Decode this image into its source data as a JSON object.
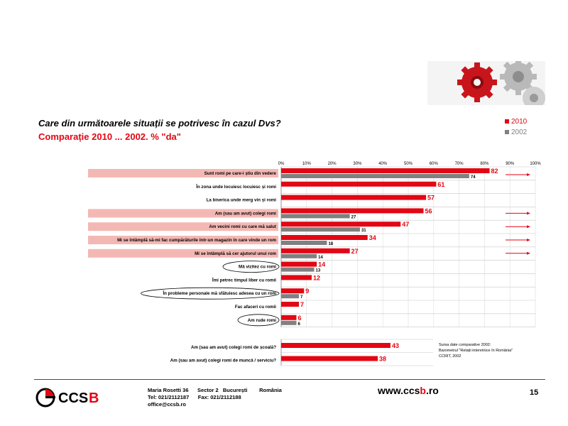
{
  "title": "Care din următoarele situații se potrivesc în cazul Dvs?",
  "subtitle": "Comparație 2010 ... 2002. % \"da\"",
  "legend": [
    {
      "label": "2010",
      "color": "#e30613"
    },
    {
      "label": "2002",
      "color": "#808080"
    }
  ],
  "chart_data": {
    "type": "bar",
    "orientation": "horizontal",
    "title": "Care din următoarele situații se potrivesc în cazul Dvs?",
    "subtitle": "Comparație 2010 ... 2002. % \"da\"",
    "xlim": [
      0,
      100
    ],
    "ticks": [
      "0%",
      "10%",
      "20%",
      "30%",
      "40%",
      "50%",
      "60%",
      "70%",
      "80%",
      "90%",
      "100%"
    ],
    "legend_position": "top-right",
    "categories": [
      "Sunt romi pe care-i știu din vedere",
      "În zona unde locuiesc locuiesc și romi",
      "La biserica unde merg vin și romi",
      "Am (sau am avut) colegi romi",
      "Am vecini romi cu care mă salut",
      "Mi se întâmplă să-mi fac cumpărăturile într-un magazin în care vinde un rom",
      "Mi se întâmplă să cer ajutorul unui rom",
      "Mă vizitez cu romi",
      "Îmi petrec timpul liber cu romii",
      "În probleme personale mă sfătuiesc adesea cu un rom",
      "Fac afaceri cu romii",
      "Am rude romi"
    ],
    "series": [
      {
        "name": "2010",
        "values": [
          82,
          61,
          57,
          56,
          47,
          34,
          27,
          14,
          12,
          9,
          7,
          6
        ]
      },
      {
        "name": "2002",
        "values": [
          74,
          null,
          null,
          27,
          31,
          18,
          14,
          13,
          null,
          7,
          null,
          6
        ]
      }
    ],
    "highlighted": [
      true,
      false,
      false,
      true,
      true,
      true,
      true,
      false,
      false,
      false,
      false,
      false
    ],
    "circled": [
      false,
      false,
      false,
      false,
      false,
      false,
      false,
      true,
      false,
      true,
      false,
      true
    ],
    "arrows": [
      true,
      false,
      false,
      true,
      true,
      true,
      true,
      false,
      false,
      false,
      false,
      false
    ],
    "extra_categories": [
      "Am (sau am avut) colegi romi de școală?",
      "Am (sau am avut) colegi romi de muncă / serviciu?"
    ],
    "extra_values": [
      43,
      38
    ]
  },
  "source_note": [
    "Sursa date comparative 2002:",
    "Barometrul \"Relații interetnice în România\"",
    "CCRIT, 2002"
  ],
  "footer": {
    "logo_text": "CCSB",
    "address_line1": "Maria Rosetti 36      Sector 2   București        România",
    "address_line2": "Tel: 021/2112187      Fax: 021/2112188",
    "address_line3": "office@ccsb.ro",
    "website_prefix": "www.ccs",
    "website_b": "b",
    "website_suffix": ".ro",
    "page_number": "15"
  }
}
